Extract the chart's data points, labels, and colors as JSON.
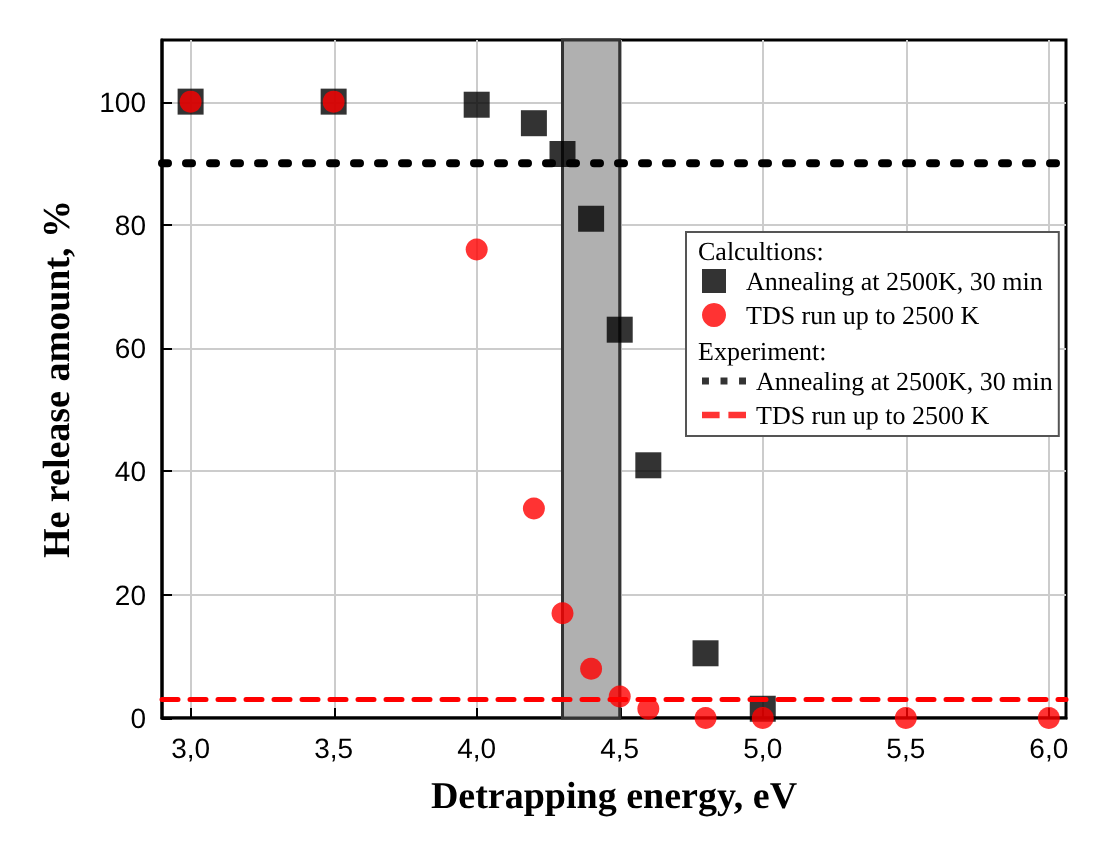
{
  "chart_data": {
    "type": "scatter",
    "xlabel": "Detrapping energy, eV",
    "ylabel": "He release amount, %",
    "xlim": [
      2.9,
      6.06
    ],
    "ylim": [
      0,
      110
    ],
    "xticks": [
      {
        "value": 3,
        "label": "3,0"
      },
      {
        "value": 3.5,
        "label": "3,5"
      },
      {
        "value": 4,
        "label": "4,0"
      },
      {
        "value": 4.5,
        "label": "4,5"
      },
      {
        "value": 5,
        "label": "5,0"
      },
      {
        "value": 5.5,
        "label": "5,5"
      },
      {
        "value": 6,
        "label": "6,0"
      }
    ],
    "yticks": [
      0,
      20,
      40,
      60,
      80,
      100
    ],
    "grid": true,
    "legend": "right",
    "annotations": [
      "Calcultions:",
      "Experiment:"
    ],
    "bands": [
      {
        "axis": "x",
        "from": 4.3,
        "to": 4.5,
        "color": "#b0b0b0"
      }
    ],
    "series": [
      {
        "name": "Annealing at 2500K, 30 min",
        "marker": "square",
        "color": "#000000",
        "x": [
          3,
          3.5,
          4,
          4.2,
          4.3,
          4.4,
          4.5,
          4.6,
          4.8,
          5
        ],
        "values": [
          100,
          100,
          99.5,
          96.5,
          91.5,
          81,
          63,
          41,
          10.5,
          1.5
        ]
      },
      {
        "name": "TDS run up to 2500 K",
        "marker": "circle",
        "color": "#ff0000",
        "x": [
          3,
          3.5,
          4,
          4.2,
          4.3,
          4.4,
          4.5,
          4.6,
          4.8,
          5,
          5.5,
          6
        ],
        "values": [
          100,
          100,
          76,
          34,
          17,
          8,
          3.5,
          1.5,
          0,
          0,
          0,
          0
        ]
      },
      {
        "name": "Annealing at 2500K, 30 min",
        "type": "line",
        "marker": "none",
        "line_style": "dotted",
        "color": "#000000",
        "x": [
          2.9,
          6.06
        ],
        "values": [
          90,
          90
        ]
      },
      {
        "name": "TDS run up to 2500 K",
        "type": "line",
        "marker": "none",
        "line_style": "dashed",
        "color": "#ff0000",
        "x": [
          2.9,
          6.06
        ],
        "values": [
          3,
          3
        ]
      }
    ]
  }
}
